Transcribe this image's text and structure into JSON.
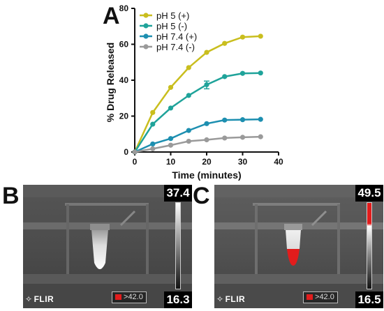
{
  "panel_labels": {
    "a": "A",
    "b": "B",
    "c": "C"
  },
  "chart_data": {
    "type": "line",
    "xlabel": "Time (minutes)",
    "ylabel": "% Drug Released",
    "xlim": [
      0,
      40
    ],
    "ylim": [
      0,
      80
    ],
    "xticks": [
      "0",
      "10",
      "20",
      "30",
      "40"
    ],
    "yticks": [
      "0",
      "20",
      "40",
      "60",
      "80"
    ],
    "grid": false,
    "legend_position": "top-left",
    "x": [
      0,
      5,
      10,
      15,
      20,
      25,
      30,
      35
    ],
    "series": [
      {
        "name": "pH 5 (+)",
        "color": "#c9be1e",
        "values": [
          0,
          22,
          36,
          47,
          55.5,
          60.5,
          64,
          64.5
        ]
      },
      {
        "name": "pH 5 (-)",
        "color": "#1fa39a",
        "values": [
          0,
          15.5,
          24.5,
          31.5,
          37.5,
          42,
          43.8,
          44
        ]
      },
      {
        "name": "pH 7.4 (+)",
        "color": "#1d8fb0",
        "values": [
          0,
          4.5,
          7.5,
          12,
          15.8,
          17.8,
          18,
          18.2
        ]
      },
      {
        "name": "pH 7.4 (-)",
        "color": "#9a9a9a",
        "values": [
          0,
          1.8,
          3.8,
          6,
          6.8,
          7.8,
          8.2,
          8.5
        ]
      }
    ],
    "error_bars": [
      {
        "series": "pH 5 (-)",
        "x": 20,
        "low": 35.2,
        "high": 39.5
      }
    ]
  },
  "thermal_b": {
    "max_temp": "37.4",
    "min_temp": "16.3",
    "spot_reading": "42.0",
    "brand": "FLIR",
    "scale_hot_color": "#ffffff"
  },
  "thermal_c": {
    "max_temp": "49.5",
    "min_temp": "16.5",
    "spot_reading": "42.0",
    "brand": "FLIR",
    "scale_hot_color": "#e21c1c"
  }
}
